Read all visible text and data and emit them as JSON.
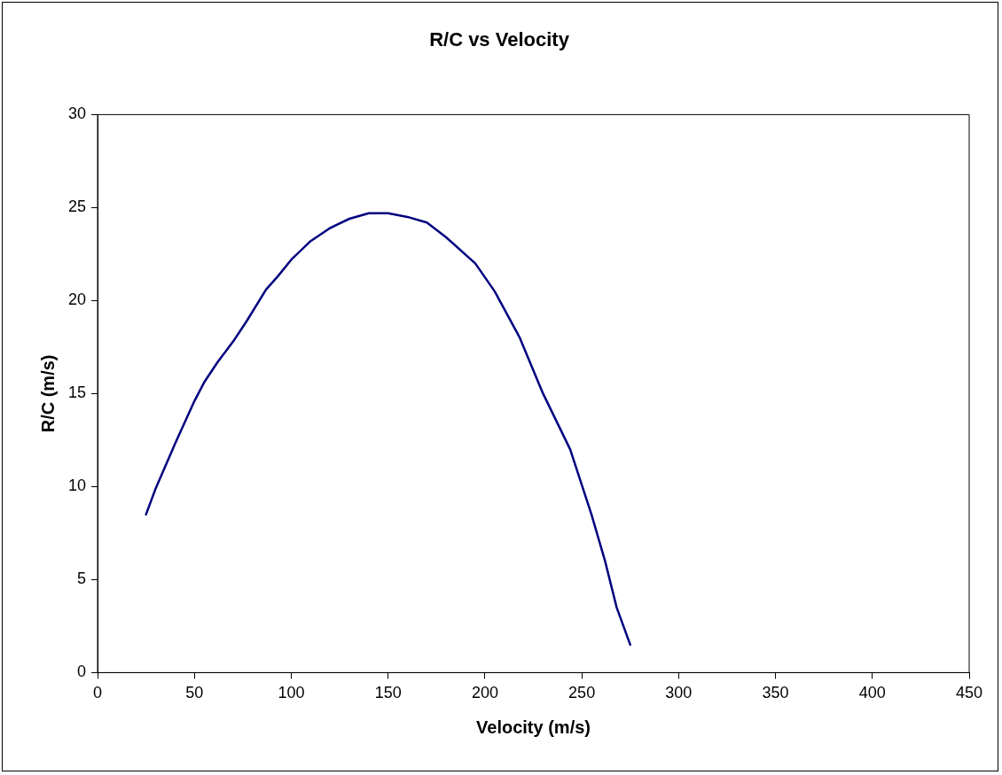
{
  "chart_data": {
    "type": "line",
    "title": "R/C vs Velocity",
    "xlabel": "Velocity (m/s)",
    "ylabel": "R/C (m/s)",
    "x": [
      25,
      30,
      40,
      50,
      55,
      62,
      70,
      77,
      87,
      93,
      100,
      110,
      120,
      130,
      140,
      150,
      160,
      170,
      180,
      195,
      205,
      218,
      230,
      244,
      255,
      262,
      268,
      275
    ],
    "series": [
      {
        "color": "#000080",
        "values": [
          8.5,
          9.9,
          12.3,
          14.6,
          15.6,
          16.7,
          17.8,
          18.9,
          20.6,
          21.3,
          22.2,
          23.2,
          23.9,
          24.4,
          24.7,
          24.7,
          24.5,
          24.2,
          23.4,
          22.0,
          20.5,
          18.0,
          15.0,
          12.0,
          8.5,
          6.0,
          3.5,
          1.5
        ]
      }
    ],
    "xlim": [
      0,
      450
    ],
    "xticks": [
      0,
      50,
      100,
      150,
      200,
      250,
      300,
      350,
      400,
      450
    ],
    "ylim": [
      0,
      30
    ],
    "yticks": [
      0,
      5,
      10,
      15,
      20,
      25,
      30
    ],
    "grid": false,
    "legend": false,
    "marker": "none",
    "line_style": "solid"
  }
}
